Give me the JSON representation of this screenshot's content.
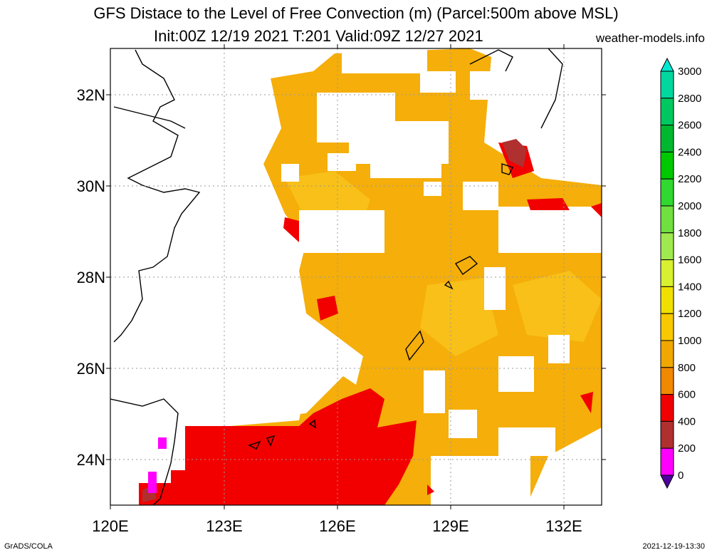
{
  "title": {
    "line1": "GFS Distace to the Level of Free Convection (m) (Parcel:500m above MSL)",
    "line2": "Init:00Z 12/19 2021 T:201 Valid:09Z 12/27 2021",
    "site": "weather-models.info"
  },
  "footer": {
    "left": "GrADS/COLA",
    "right": "2021-12-19-13:30"
  },
  "map": {
    "lat_labels": [
      "32N",
      "30N",
      "28N",
      "26N",
      "24N"
    ],
    "lon_labels": [
      "120E",
      "123E",
      "126E",
      "129E",
      "132E"
    ],
    "lon_range": [
      120,
      133
    ],
    "lat_range": [
      23,
      33
    ]
  },
  "colorbar": {
    "labels": [
      "3000",
      "2800",
      "2600",
      "2400",
      "2200",
      "2000",
      "1800",
      "1600",
      "1400",
      "1200",
      "1000",
      "800",
      "600",
      "400",
      "200",
      "0"
    ],
    "colors": [
      "#00e8d0",
      "#00d8a0",
      "#00c860",
      "#00b830",
      "#00c800",
      "#30d830",
      "#70e040",
      "#a0e850",
      "#d8f030",
      "#f0e000",
      "#f8c800",
      "#f0a800",
      "#f08800",
      "#f00000",
      "#b03030",
      "#ff00ff",
      "#5000a0"
    ]
  }
}
